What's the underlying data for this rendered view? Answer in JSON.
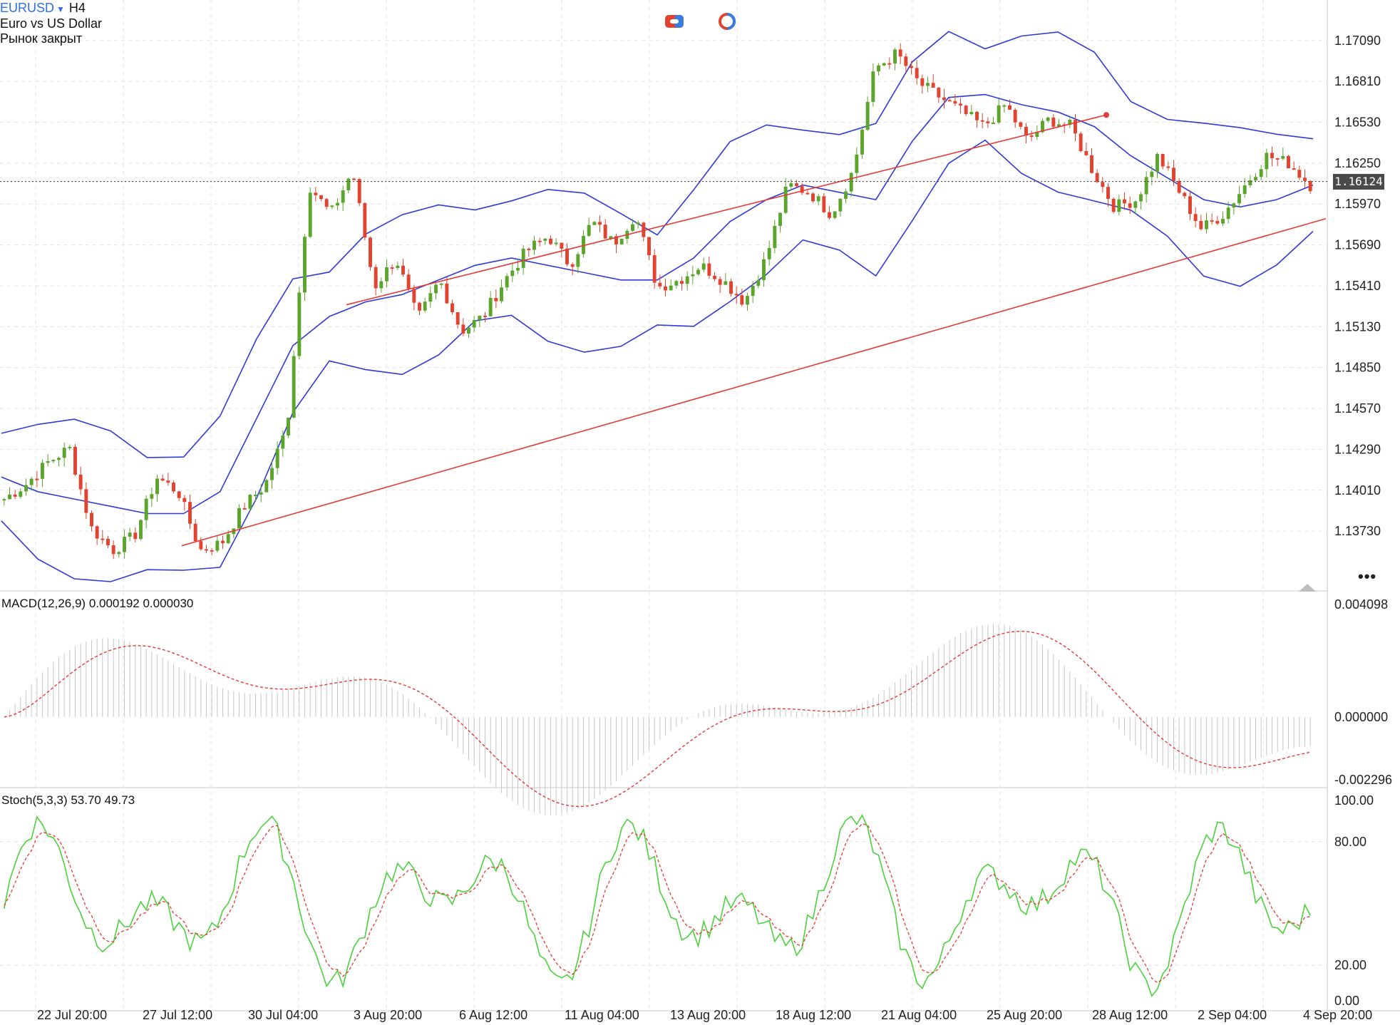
{
  "header": {
    "symbol": "EURUSD",
    "timeframe": "H4",
    "instrument_name": "Euro vs US Dollar",
    "market_status": "Рынок закрыт"
  },
  "price_axis": {
    "labels": [
      "1.17090",
      "1.16810",
      "1.16530",
      "1.16250",
      "1.15970",
      "1.15690",
      "1.15410",
      "1.15130",
      "1.14850",
      "1.14570",
      "1.14290",
      "1.14010",
      "1.13730"
    ],
    "current_price": "1.16124"
  },
  "time_axis": {
    "labels": [
      "22 Jul 20:00",
      "27 Jul 12:00",
      "30 Jul 04:00",
      "3 Aug 20:00",
      "6 Aug 12:00",
      "11 Aug 04:00",
      "13 Aug 20:00",
      "18 Aug 12:00",
      "21 Aug 04:00",
      "25 Aug 20:00",
      "28 Aug 12:00",
      "2 Sep 04:00",
      "4 Sep 20:00"
    ]
  },
  "macd": {
    "title": "MACD(12,26,9) 0.000192 0.000030",
    "axis_labels": [
      "0.004098",
      "0.000000",
      "-0.002296"
    ]
  },
  "stoch": {
    "title": "Stoch(5,3,3) 53.70 49.73",
    "axis_labels": [
      "100.00",
      "80.00",
      "20.00",
      "0.00"
    ]
  },
  "colors": {
    "bull": "#5aa52a",
    "bear": "#e2432f",
    "bands": "#2f3ad8",
    "trend": "#e53935",
    "stoch_main": "#4bd23c",
    "stoch_signal": "#e53935",
    "macd_hist": "#c8c8c8",
    "grid": "#e3e3e3"
  },
  "chart_data": {
    "type": "candlestick",
    "symbol": "EURUSD",
    "timeframe": "H4",
    "current_price": 1.16124,
    "price_range": [
      1.1355,
      1.1725
    ],
    "price_points": [
      1.1395,
      1.1405,
      1.142,
      1.143,
      1.1375,
      1.136,
      1.137,
      1.141,
      1.14,
      1.136,
      1.1365,
      1.139,
      1.1405,
      1.1445,
      1.161,
      1.159,
      1.162,
      1.154,
      1.156,
      1.1518,
      1.1545,
      1.151,
      1.152,
      1.1545,
      1.1565,
      1.1575,
      1.1555,
      1.1585,
      1.157,
      1.159,
      1.154,
      1.1545,
      1.1555,
      1.1545,
      1.153,
      1.156,
      1.161,
      1.1605,
      1.159,
      1.162,
      1.169,
      1.17,
      1.168,
      1.167,
      1.166,
      1.165,
      1.1665,
      1.164,
      1.1655,
      1.165,
      1.162,
      1.1595,
      1.16,
      1.163,
      1.1605,
      1.158,
      1.159,
      1.161,
      1.163,
      1.1625,
      1.161
    ],
    "bollinger_mid": [
      1.141,
      1.14,
      1.1395,
      1.139,
      1.1385,
      1.1385,
      1.14,
      1.145,
      1.15,
      1.152,
      1.153,
      1.1535,
      1.1545,
      1.1555,
      1.156,
      1.1555,
      1.155,
      1.1545,
      1.1545,
      1.156,
      1.1585,
      1.16,
      1.161,
      1.1605,
      1.16,
      1.164,
      1.167,
      1.1672,
      1.1665,
      1.166,
      1.165,
      1.163,
      1.1615,
      1.16,
      1.1595,
      1.16,
      1.161
    ],
    "trendlines": [
      {
        "from": {
          "time": "27 Jul",
          "price": 1.1363
        },
        "to": {
          "time": "4 Sep 20:00",
          "price": 1.1587
        }
      },
      {
        "from": {
          "time": "30 Jul",
          "price": 1.1528
        },
        "to": {
          "time": "28 Aug",
          "price": 1.1658
        }
      }
    ],
    "macd": {
      "main": 0.000192,
      "signal": 3e-05,
      "range": [
        -0.002296,
        0.004098
      ]
    },
    "stochastic": {
      "k": 53.7,
      "d": 49.73,
      "levels": [
        20,
        80
      ],
      "range": [
        0,
        100
      ]
    }
  }
}
